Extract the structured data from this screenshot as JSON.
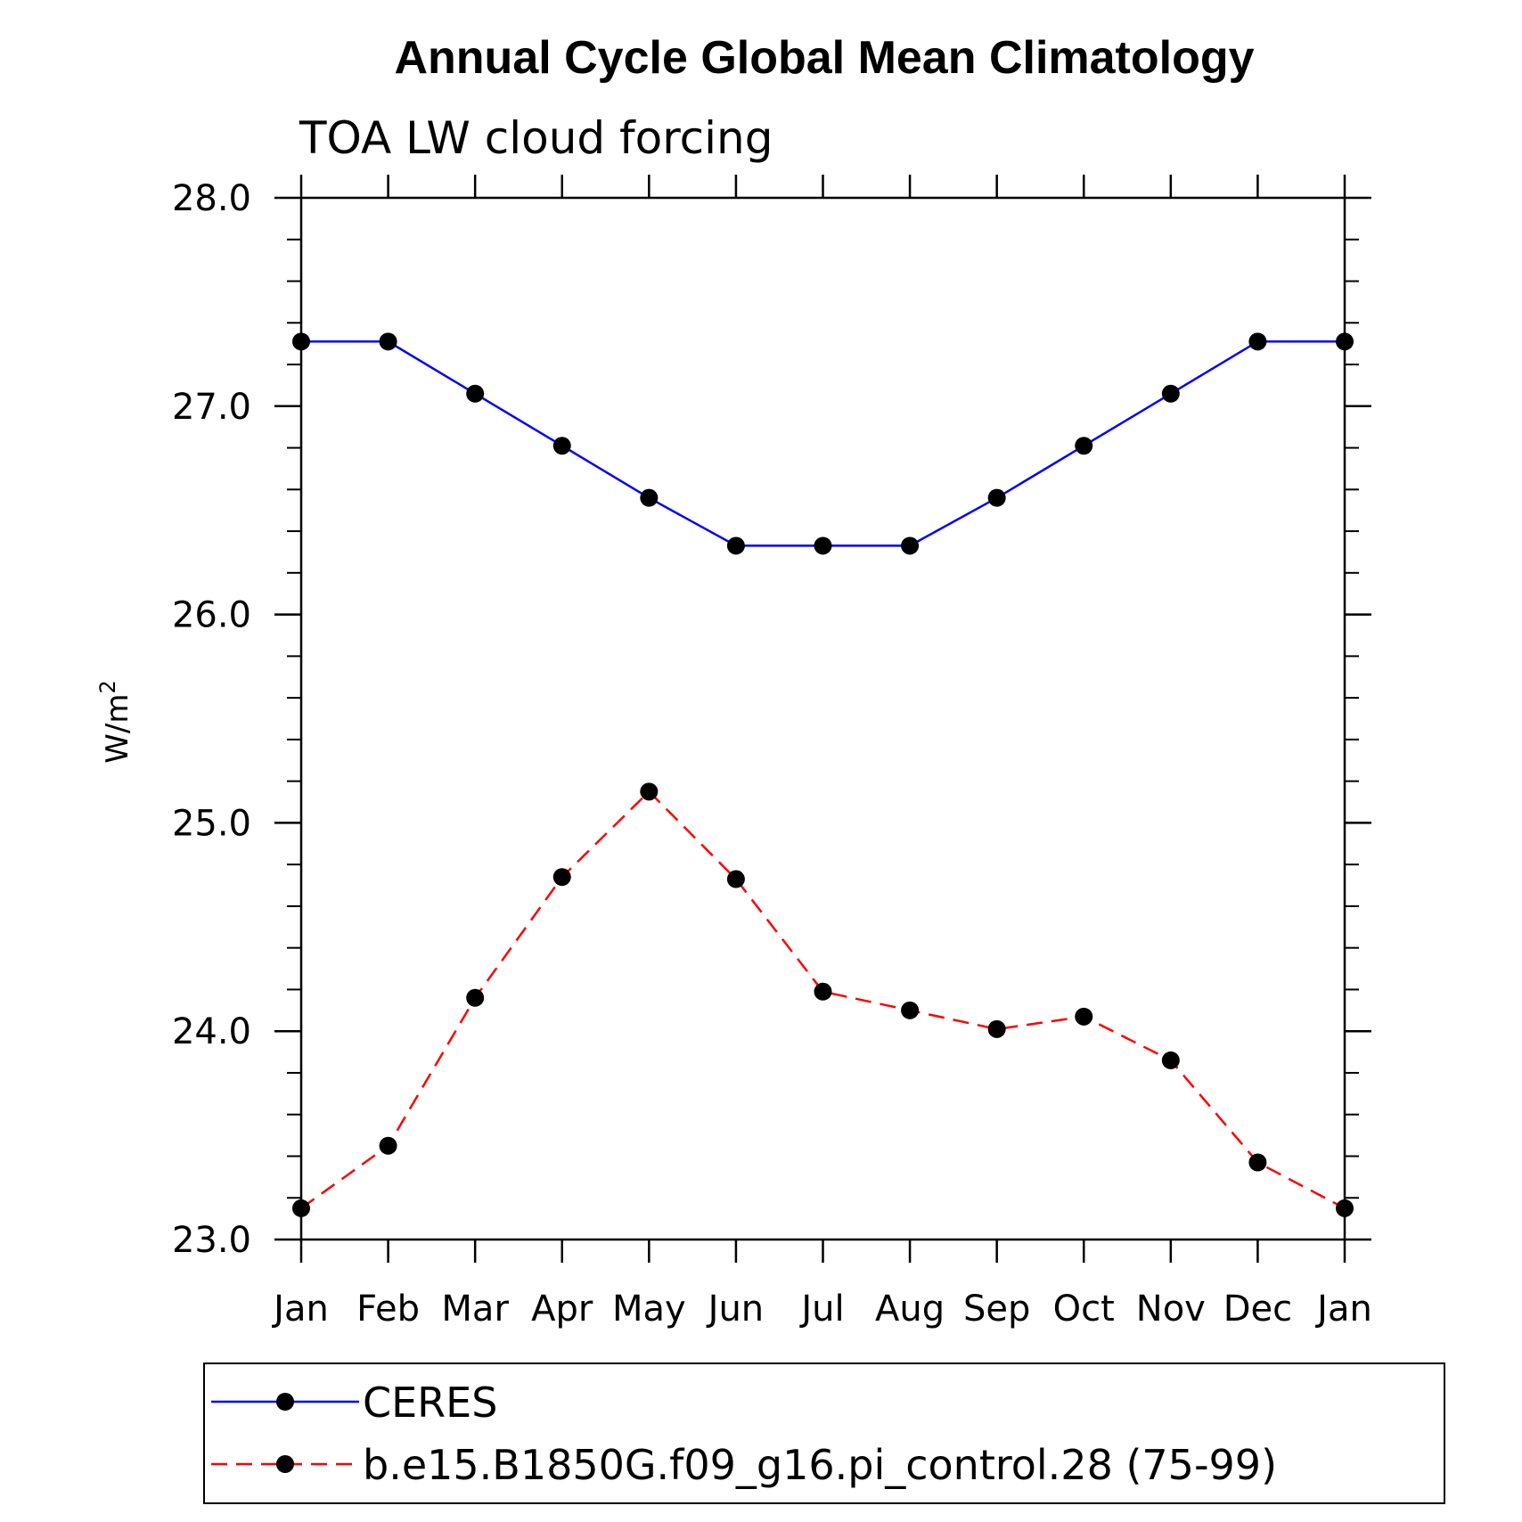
{
  "chart_data": {
    "type": "line",
    "title": "Annual Cycle Global Mean Climatology",
    "subtitle": "TOA LW cloud forcing",
    "ylabel": "W/m",
    "ylabel_superscript": "2",
    "xlabel": "",
    "categories": [
      "Jan",
      "Feb",
      "Mar",
      "Apr",
      "May",
      "Jun",
      "Jul",
      "Aug",
      "Sep",
      "Oct",
      "Nov",
      "Dec",
      "Jan"
    ],
    "ylim": [
      23.0,
      28.0
    ],
    "yticks": [
      "23.0",
      "24.0",
      "25.0",
      "26.0",
      "27.0",
      "28.0"
    ],
    "grid": false,
    "legend_position": "bottom",
    "series": [
      {
        "name": "CERES",
        "color": "#0000ff",
        "line_style": "solid",
        "marker": "filled-circle",
        "values": [
          27.31,
          27.31,
          27.06,
          26.81,
          26.56,
          26.33,
          26.33,
          26.33,
          26.56,
          26.81,
          27.06,
          27.31,
          27.31
        ]
      },
      {
        "name": "b.e15.B1850G.f09_g16.pi_control.28 (75-99)",
        "color": "#ff0000",
        "line_style": "dashed",
        "marker": "filled-circle",
        "values": [
          23.15,
          23.45,
          24.16,
          24.74,
          25.15,
          24.73,
          24.19,
          24.1,
          24.01,
          24.07,
          23.86,
          23.37,
          23.15
        ]
      }
    ]
  }
}
